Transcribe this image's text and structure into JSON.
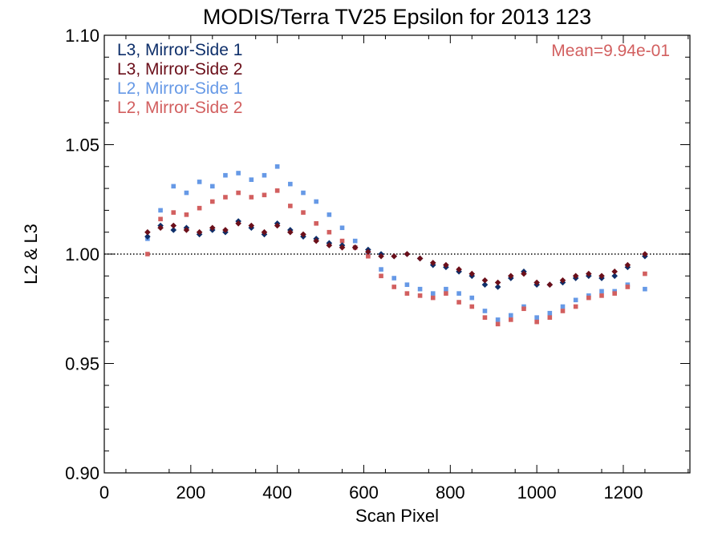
{
  "chart_data": {
    "type": "scatter",
    "title": "MODIS/Terra TV25 Epsilon for 2013 123",
    "xlabel": "Scan Pixel",
    "ylabel": "L2 & L3",
    "xlim": [
      0,
      1354
    ],
    "ylim": [
      0.9,
      1.1
    ],
    "x_ticks": [
      "0",
      "200",
      "400",
      "600",
      "800",
      "1000",
      "1200"
    ],
    "y_ticks": [
      "0.90",
      "0.95",
      "1.00",
      "1.05",
      "1.10"
    ],
    "reference_line": 1.0,
    "annotation": "Mean=9.94e-01",
    "annotation_color": "#d25f5f",
    "legend_position": "top-left",
    "series": [
      {
        "name": "L3, Mirror-Side 1",
        "color": "#0e2f6a",
        "marker": "diamond",
        "x": [
          100,
          130,
          160,
          190,
          220,
          250,
          280,
          310,
          340,
          370,
          400,
          430,
          460,
          490,
          520,
          550,
          580,
          610,
          640,
          670,
          700,
          730,
          760,
          790,
          820,
          850,
          880,
          910,
          940,
          970,
          1000,
          1030,
          1060,
          1090,
          1120,
          1150,
          1180,
          1210,
          1250
        ],
        "y": [
          1.008,
          1.013,
          1.011,
          1.012,
          1.009,
          1.011,
          1.01,
          1.015,
          1.012,
          1.009,
          1.014,
          1.011,
          1.008,
          1.007,
          1.005,
          1.004,
          1.003,
          1.002,
          1.0,
          0.999,
          1.0,
          0.998,
          0.995,
          0.994,
          0.992,
          0.99,
          0.986,
          0.985,
          0.989,
          0.992,
          0.986,
          0.986,
          0.987,
          0.989,
          0.99,
          0.989,
          0.99,
          0.994,
          0.999
        ]
      },
      {
        "name": "L3, Mirror-Side 2",
        "color": "#6b0f1a",
        "marker": "diamond",
        "x": [
          100,
          130,
          160,
          190,
          220,
          250,
          280,
          310,
          340,
          370,
          400,
          430,
          460,
          490,
          520,
          550,
          580,
          610,
          640,
          670,
          700,
          730,
          760,
          790,
          820,
          850,
          880,
          910,
          940,
          970,
          1000,
          1030,
          1060,
          1090,
          1120,
          1150,
          1180,
          1210,
          1250
        ],
        "y": [
          1.01,
          1.012,
          1.013,
          1.011,
          1.01,
          1.012,
          1.011,
          1.014,
          1.013,
          1.01,
          1.013,
          1.01,
          1.009,
          1.006,
          1.004,
          1.003,
          1.003,
          1.001,
          0.999,
          0.999,
          1.0,
          0.998,
          0.996,
          0.995,
          0.993,
          0.991,
          0.988,
          0.987,
          0.99,
          0.991,
          0.987,
          0.986,
          0.988,
          0.99,
          0.991,
          0.99,
          0.992,
          0.995,
          1.0
        ]
      },
      {
        "name": "L2, Mirror-Side 1",
        "color": "#6699e6",
        "marker": "square",
        "x": [
          100,
          130,
          160,
          190,
          220,
          250,
          280,
          310,
          340,
          370,
          400,
          430,
          460,
          490,
          520,
          550,
          580,
          610,
          640,
          670,
          700,
          730,
          760,
          790,
          820,
          850,
          880,
          910,
          940,
          970,
          1000,
          1030,
          1060,
          1090,
          1120,
          1150,
          1180,
          1210,
          1250
        ],
        "y": [
          1.007,
          1.02,
          1.031,
          1.028,
          1.033,
          1.031,
          1.036,
          1.037,
          1.034,
          1.036,
          1.04,
          1.032,
          1.028,
          1.024,
          1.018,
          1.012,
          1.006,
          1.0,
          0.993,
          0.989,
          0.986,
          0.984,
          0.982,
          0.984,
          0.982,
          0.98,
          0.974,
          0.97,
          0.972,
          0.976,
          0.971,
          0.973,
          0.976,
          0.979,
          0.981,
          0.983,
          0.983,
          0.986,
          0.984
        ]
      },
      {
        "name": "L2, Mirror-Side 2",
        "color": "#d25f5f",
        "marker": "square",
        "x": [
          100,
          130,
          160,
          190,
          220,
          250,
          280,
          310,
          340,
          370,
          400,
          430,
          460,
          490,
          520,
          550,
          580,
          610,
          640,
          670,
          700,
          730,
          760,
          790,
          820,
          850,
          880,
          910,
          940,
          970,
          1000,
          1030,
          1060,
          1090,
          1120,
          1150,
          1180,
          1210,
          1250
        ],
        "y": [
          1.0,
          1.016,
          1.019,
          1.018,
          1.021,
          1.024,
          1.026,
          1.028,
          1.026,
          1.027,
          1.029,
          1.022,
          1.019,
          1.014,
          1.01,
          1.006,
          1.003,
          0.999,
          0.99,
          0.985,
          0.982,
          0.981,
          0.98,
          0.982,
          0.978,
          0.976,
          0.971,
          0.968,
          0.97,
          0.975,
          0.969,
          0.971,
          0.974,
          0.976,
          0.98,
          0.981,
          0.982,
          0.985,
          0.991
        ]
      }
    ]
  }
}
